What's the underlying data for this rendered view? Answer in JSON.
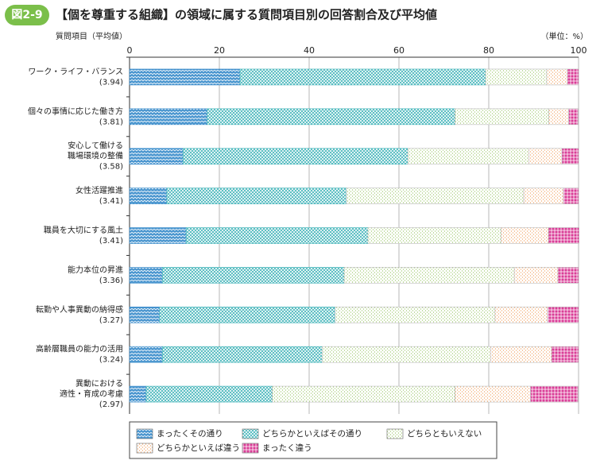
{
  "chart_data": {
    "type": "stacked-bar-horizontal",
    "figure_label": "図2-9",
    "title": "【個を尊重する組織】の領域に属する質問項目別の回答割合及び平均値",
    "y_axis_label": "質問項目（平均値）",
    "unit_label": "（単位：%）",
    "categories": [
      [
        "ワーク・ライフ・バランス",
        "(3.94)"
      ],
      [
        "個々の事情に応じた働き方",
        "(3.81)"
      ],
      [
        "安心して働ける",
        "職場環境の整備",
        "(3.58)"
      ],
      [
        "女性活躍推進",
        "(3.41)"
      ],
      [
        "職員を大切にする風土",
        "(3.41)"
      ],
      [
        "能力本位の昇進",
        "(3.36)"
      ],
      [
        "転勤や人事異動の納得感",
        "(3.27)"
      ],
      [
        "高齢層職員の能力の活用",
        "(3.24)"
      ],
      [
        "異動における",
        "適性・育成の考慮",
        "(2.97)"
      ]
    ],
    "series": [
      {
        "name": "まったくその通り",
        "color": "#2f86c8",
        "values": [
          24.6,
          17.3,
          11.9,
          8.3,
          12.6,
          7.3,
          6.7,
          7.3,
          3.7
        ]
      },
      {
        "name": "どちらかといえばその通り",
        "color": "#3fb3b8",
        "values": [
          54.7,
          55.2,
          50.1,
          40.0,
          40.5,
          40.5,
          39.1,
          35.6,
          28.1
        ]
      },
      {
        "name": "どちらともいえない",
        "color": "#9cc86a",
        "values": [
          13.6,
          20.9,
          26.9,
          39.5,
          29.6,
          37.9,
          35.6,
          37.5,
          40.7
        ]
      },
      {
        "name": "どちらかといえば違う",
        "color": "#f0a060",
        "values": [
          4.6,
          4.4,
          7.4,
          8.8,
          10.6,
          9.7,
          11.7,
          13.6,
          16.8
        ]
      },
      {
        "name": "まったく違う",
        "color": "#d6288c",
        "values": [
          2.5,
          2.1,
          3.7,
          3.4,
          6.8,
          4.6,
          6.9,
          6.0,
          10.6
        ]
      }
    ],
    "xlim": [
      0,
      100
    ],
    "xticks": [
      0,
      20,
      40,
      60,
      80,
      100
    ],
    "grid": true
  }
}
